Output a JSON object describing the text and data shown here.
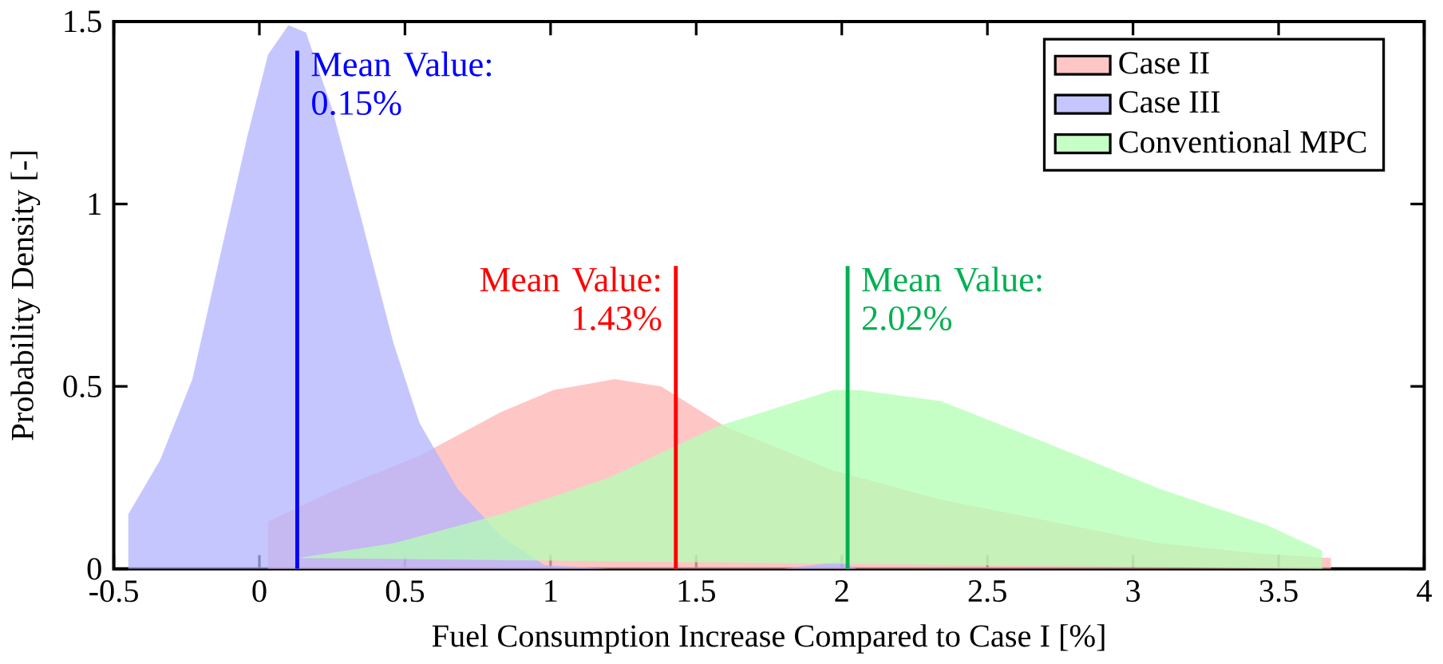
{
  "chart_data": {
    "type": "area",
    "xlabel": "Fuel Consumption Increase Compared to Case I [%]",
    "ylabel": "Probability Density [-]",
    "xlim": [
      -0.5,
      4
    ],
    "xticks": [
      -0.5,
      0,
      0.5,
      1,
      1.5,
      2,
      2.5,
      3,
      3.5,
      4
    ],
    "ylim": [
      0,
      1.5
    ],
    "yticks": [
      0,
      0.5,
      1,
      1.5
    ],
    "legend": "top right",
    "grid": false,
    "series": [
      {
        "name": "Case II",
        "color": "#ffb3b3",
        "x": [
          0.03,
          0.03,
          0.27,
          0.55,
          0.83,
          1.01,
          1.22,
          1.38,
          1.6,
          1.97,
          2.34,
          2.72,
          3.09,
          3.46,
          3.68,
          3.68
        ],
        "values": [
          0,
          0.13,
          0.22,
          0.31,
          0.43,
          0.49,
          0.52,
          0.5,
          0.39,
          0.27,
          0.19,
          0.13,
          0.07,
          0.04,
          0.03,
          0
        ]
      },
      {
        "name": "Case III",
        "color": "#b3b3ff",
        "x": [
          -0.45,
          -0.45,
          -0.34,
          -0.23,
          -0.14,
          -0.04,
          0.03,
          0.1,
          0.16,
          0.25,
          0.35,
          0.46,
          0.55,
          0.68,
          0.83,
          0.98,
          1.2,
          1.8,
          2.0,
          2.05
        ],
        "values": [
          0,
          0.15,
          0.3,
          0.52,
          0.84,
          1.19,
          1.41,
          1.49,
          1.47,
          1.26,
          0.96,
          0.62,
          0.4,
          0.22,
          0.09,
          0.01,
          0,
          0,
          0.02,
          0
        ]
      },
      {
        "name": "Conventional MPC",
        "color": "#b3ffb3",
        "x": [
          0.13,
          0.46,
          0.83,
          1.2,
          1.57,
          1.97,
          2.06,
          2.34,
          2.72,
          3.09,
          3.46,
          3.65,
          3.65
        ],
        "values": [
          0.03,
          0.07,
          0.15,
          0.25,
          0.39,
          0.49,
          0.49,
          0.46,
          0.34,
          0.22,
          0.12,
          0.05,
          0
        ]
      },
      {
        "type": "line",
        "color": "#0000ff",
        "x": [
          0.13,
          0.13
        ],
        "values": [
          0,
          1.42
        ]
      },
      {
        "type": "line",
        "color": "#ff0000",
        "x": [
          1.43,
          1.43
        ],
        "values": [
          0,
          0.83
        ]
      },
      {
        "type": "line",
        "color": "#00b050",
        "x": [
          2.02,
          2.02
        ],
        "values": [
          0,
          0.83
        ]
      }
    ],
    "annotations": [
      {
        "text": "Mean Value: 0.15%",
        "x": 0.13,
        "y": 1.42
      },
      {
        "text": "Mean Value: 1.43%",
        "x": 1.43,
        "y": 0.83
      },
      {
        "text": "Mean Value: 2.02%",
        "x": 2.02,
        "y": 0.83
      }
    ]
  }
}
